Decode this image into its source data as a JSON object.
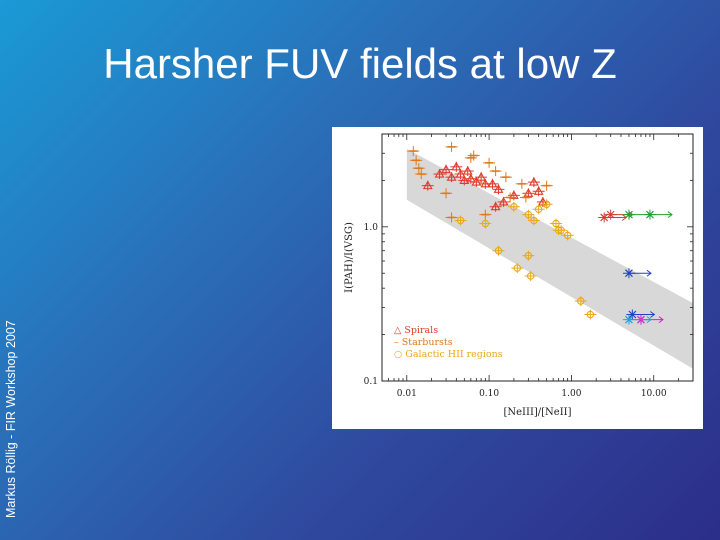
{
  "slide": {
    "title": "Harsher FUV fields at low Z",
    "side_caption": "Markus Röllig - FIR Workshop 2007"
  },
  "colors": {
    "spirals": "#e03a2a",
    "starbursts": "#e07818",
    "hii": "#e8a818",
    "band": "#d8d8d8",
    "green": "#20a030",
    "blue": "#2040c8",
    "magenta": "#d020c8",
    "cyan": "#20a0e0",
    "black": "#111111"
  },
  "chart_data": {
    "type": "scatter",
    "xscale": "log",
    "yscale": "log",
    "xlim": [
      0.005,
      30
    ],
    "ylim": [
      0.1,
      4
    ],
    "xlabel": "[NeIII]/[NeII]",
    "ylabel": "I(PAH)/I(VSG)",
    "xticks": [
      "0.01",
      "0.10",
      "1.00",
      "10.00"
    ],
    "yticks": [
      "0.1",
      "1.0"
    ],
    "legend": {
      "position": "bottom-left",
      "entries": [
        {
          "symbol": "△",
          "label": "Spirals",
          "series": "spirals"
        },
        {
          "symbol": "–",
          "label": "Starbursts",
          "series": "starbursts"
        },
        {
          "symbol": "○",
          "label": "Galactic HII regions",
          "series": "hii"
        }
      ]
    },
    "band": [
      [
        0.01,
        3.2
      ],
      [
        0.01,
        1.5
      ],
      [
        30,
        0.12
      ],
      [
        30,
        0.32
      ]
    ],
    "series": [
      {
        "key": "spirals",
        "color": "#e03a2a",
        "marker": "triangle",
        "points": [
          {
            "x": 0.018,
            "y": 1.85
          },
          {
            "x": 0.025,
            "y": 2.2
          },
          {
            "x": 0.03,
            "y": 2.35
          },
          {
            "x": 0.035,
            "y": 2.1
          },
          {
            "x": 0.04,
            "y": 2.45
          },
          {
            "x": 0.045,
            "y": 2.2
          },
          {
            "x": 0.05,
            "y": 2.0
          },
          {
            "x": 0.055,
            "y": 2.3
          },
          {
            "x": 0.06,
            "y": 2.05
          },
          {
            "x": 0.07,
            "y": 1.95
          },
          {
            "x": 0.08,
            "y": 2.1
          },
          {
            "x": 0.09,
            "y": 1.9
          },
          {
            "x": 0.11,
            "y": 1.9
          },
          {
            "x": 0.13,
            "y": 1.75
          },
          {
            "x": 0.15,
            "y": 1.45
          },
          {
            "x": 0.2,
            "y": 1.6
          },
          {
            "x": 0.3,
            "y": 1.65
          },
          {
            "x": 0.35,
            "y": 1.95
          },
          {
            "x": 0.12,
            "y": 1.35
          },
          {
            "x": 0.45,
            "y": 1.45
          },
          {
            "x": 0.4,
            "y": 1.7
          }
        ]
      },
      {
        "key": "starbursts",
        "color": "#e07818",
        "marker": "dash",
        "points": [
          {
            "x": 0.012,
            "y": 3.1
          },
          {
            "x": 0.013,
            "y": 2.7
          },
          {
            "x": 0.014,
            "y": 2.4
          },
          {
            "x": 0.015,
            "y": 2.2
          },
          {
            "x": 0.035,
            "y": 3.3
          },
          {
            "x": 0.065,
            "y": 2.9
          },
          {
            "x": 0.1,
            "y": 2.6
          },
          {
            "x": 0.12,
            "y": 2.3
          },
          {
            "x": 0.16,
            "y": 2.1
          },
          {
            "x": 0.25,
            "y": 1.9
          },
          {
            "x": 0.5,
            "y": 1.85
          },
          {
            "x": 0.18,
            "y": 1.55
          },
          {
            "x": 0.03,
            "y": 1.65
          },
          {
            "x": 0.035,
            "y": 1.15
          },
          {
            "x": 0.09,
            "y": 1.2
          },
          {
            "x": 0.06,
            "y": 2.8
          },
          {
            "x": 0.28,
            "y": 1.55
          }
        ]
      },
      {
        "key": "hii",
        "color": "#e8a818",
        "marker": "circle",
        "points": [
          {
            "x": 0.045,
            "y": 1.1
          },
          {
            "x": 0.2,
            "y": 1.35
          },
          {
            "x": 0.3,
            "y": 1.2
          },
          {
            "x": 0.35,
            "y": 1.1
          },
          {
            "x": 0.4,
            "y": 1.3
          },
          {
            "x": 0.5,
            "y": 1.4
          },
          {
            "x": 0.65,
            "y": 1.05
          },
          {
            "x": 0.75,
            "y": 0.95
          },
          {
            "x": 0.9,
            "y": 0.88
          },
          {
            "x": 0.13,
            "y": 0.7
          },
          {
            "x": 0.3,
            "y": 0.65
          },
          {
            "x": 0.22,
            "y": 0.54
          },
          {
            "x": 0.32,
            "y": 0.48
          },
          {
            "x": 1.3,
            "y": 0.33
          },
          {
            "x": 1.7,
            "y": 0.27
          },
          {
            "x": 0.7,
            "y": 0.95
          },
          {
            "x": 0.09,
            "y": 1.05
          }
        ]
      },
      {
        "key": "low-z",
        "color": "#888888",
        "marker": "cross",
        "points": [
          {
            "x": 2.5,
            "y": 1.15,
            "color": "#d04030"
          },
          {
            "x": 3.0,
            "y": 1.2,
            "color": "#d04030"
          },
          {
            "x": 5.0,
            "y": 1.2,
            "color": "#20a030"
          },
          {
            "x": 9.0,
            "y": 1.2,
            "color": "#20a030"
          },
          {
            "x": 5.0,
            "y": 0.5,
            "color": "#2040c8"
          },
          {
            "x": 5.5,
            "y": 0.27,
            "color": "#2040c8"
          },
          {
            "x": 7.0,
            "y": 0.25,
            "color": "#d020c8"
          },
          {
            "x": 5.0,
            "y": 0.25,
            "color": "#20a0e0"
          }
        ]
      }
    ]
  }
}
